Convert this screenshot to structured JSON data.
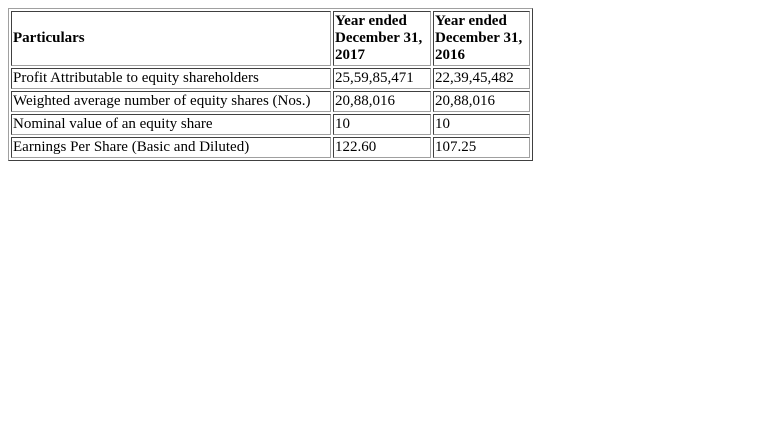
{
  "table": {
    "headers": {
      "particulars": "Particulars",
      "col_2017": [
        "Year ended",
        "December 31,",
        "2017"
      ],
      "col_2016": [
        "Year ended",
        "December 31,",
        "2016"
      ]
    },
    "rows": [
      {
        "label": "Profit Attributable to equity shareholders",
        "v2017": "25,59,85,471",
        "v2016": "22,39,45,482"
      },
      {
        "label": "Weighted average number of equity shares (Nos.)",
        "v2017": "20,88,016",
        "v2016": "20,88,016"
      },
      {
        "label": "Nominal value of an equity share",
        "v2017": "10",
        "v2016": "10"
      },
      {
        "label": "Earnings Per Share (Basic and Diluted)",
        "v2017": "122.60",
        "v2016": "107.25"
      }
    ]
  }
}
